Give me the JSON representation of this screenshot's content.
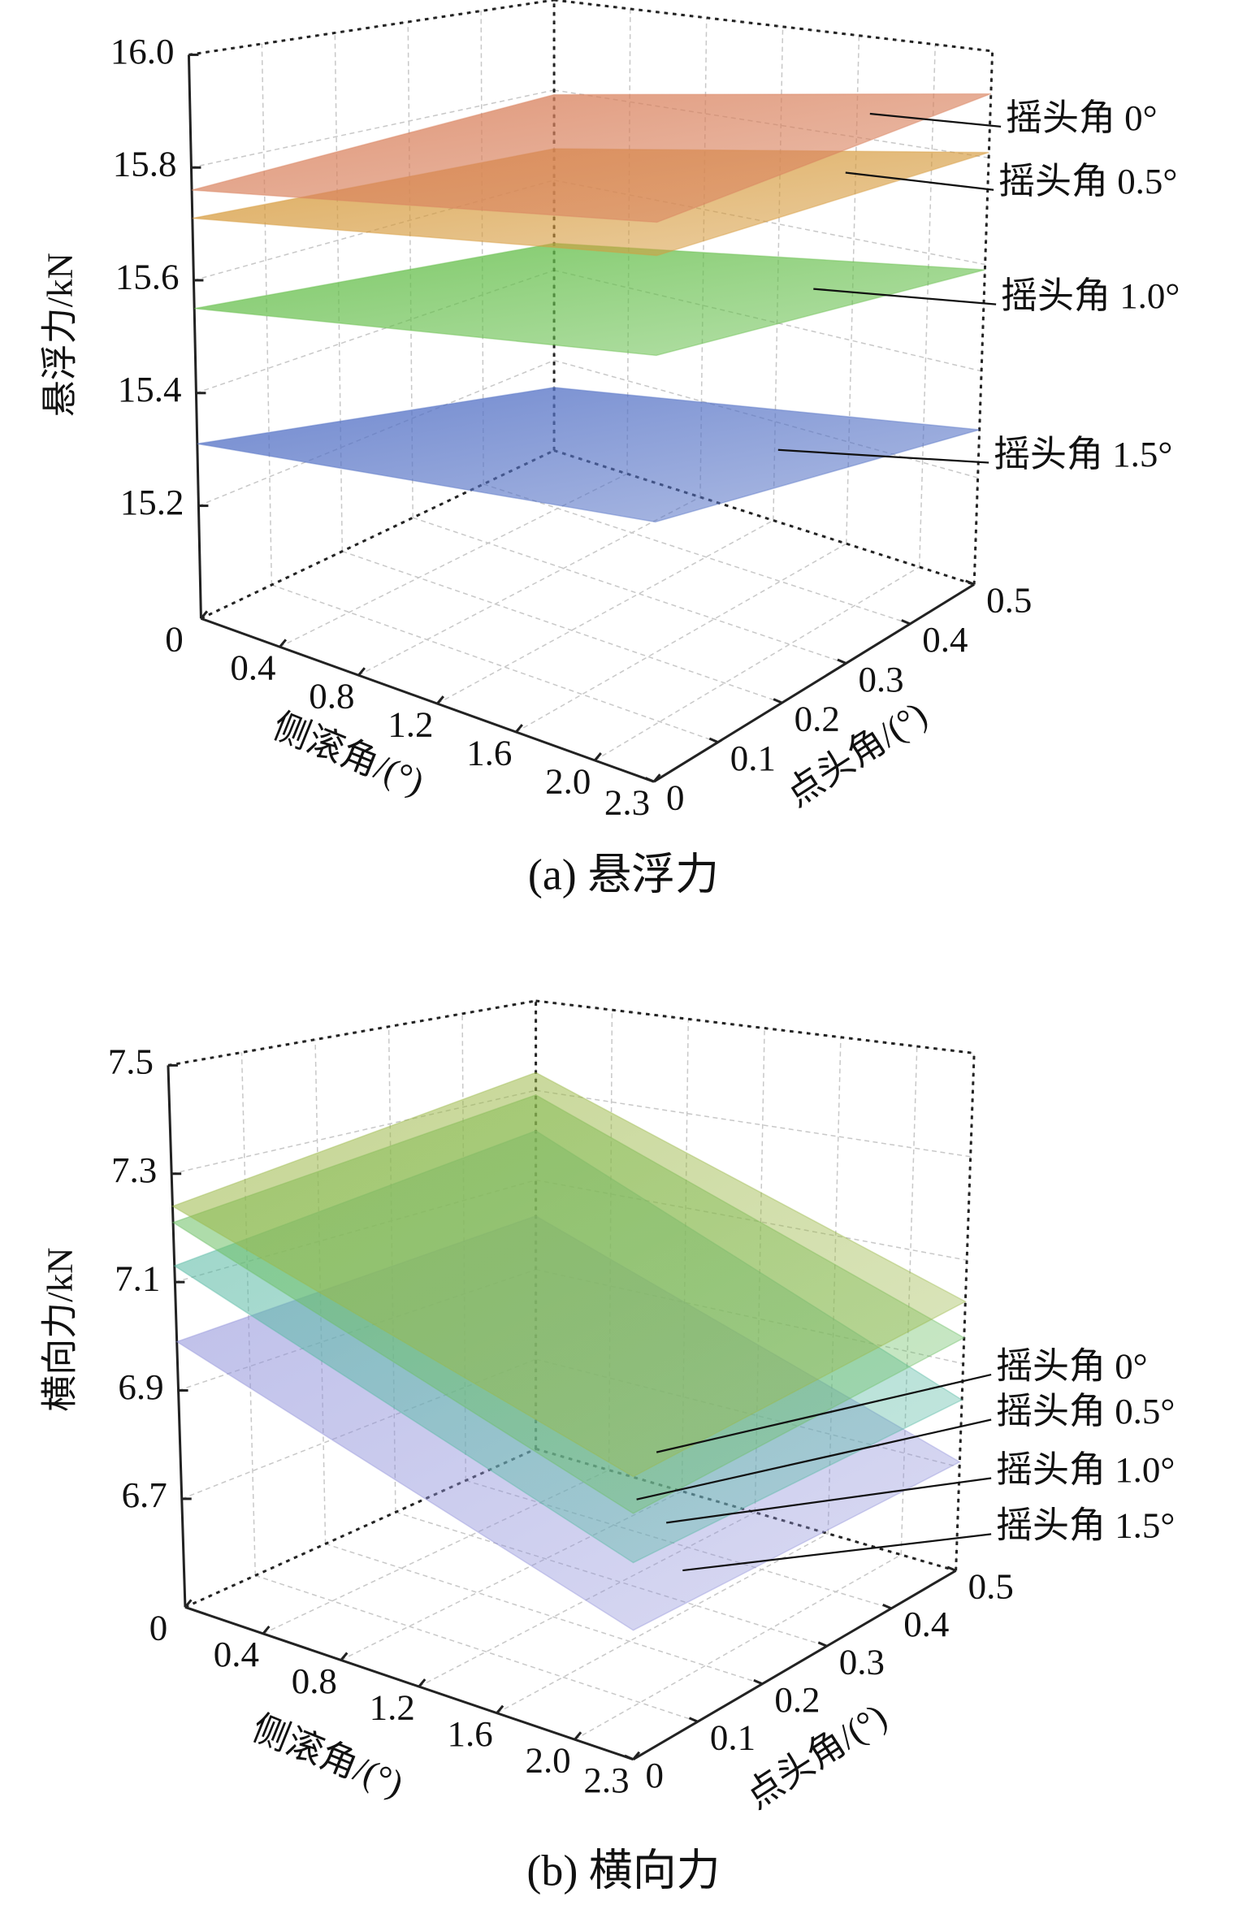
{
  "chart_data": [
    {
      "type": "surface3d",
      "caption": "(a) 悬浮力",
      "zlabel": "悬浮力/kN",
      "xlabel": "侧滚角/(°)",
      "ylabel": "点头角/(°)",
      "x": [
        0,
        2.3
      ],
      "y": [
        0,
        0.5
      ],
      "xlim": [
        0,
        2.3
      ],
      "ylim": [
        0,
        0.5
      ],
      "zlim": [
        15.0,
        16.0
      ],
      "xticks": [
        0,
        0.4,
        0.8,
        1.2,
        1.6,
        {
          "value": 2,
          "label": "2.0"
        },
        2.3
      ],
      "yticks": [
        0,
        0.1,
        0.2,
        0.3,
        0.4,
        0.5
      ],
      "zticks": [
        15.2,
        15.4,
        15.6,
        15.8,
        {
          "value": 16,
          "label": "16.0"
        }
      ],
      "grid": true,
      "opacity": 0.85,
      "series": [
        {
          "name": "摇头角 0°",
          "color": "#d9825e",
          "values": [
            [
              15.76,
              15.79
            ],
            [
              15.84,
              15.92
            ]
          ]
        },
        {
          "name": "摇头角 0.5°",
          "color": "#d69a3c",
          "values": [
            [
              15.71,
              15.67
            ],
            [
              15.79,
              15.81
            ]
          ]
        },
        {
          "name": "摇头角 1.0°",
          "color": "#66bf4c",
          "values": [
            [
              15.55,
              15.46
            ],
            [
              15.64,
              15.59
            ]
          ]
        },
        {
          "name": "摇头角 1.5°",
          "color": "#5673c6",
          "values": [
            [
              15.31,
              15.14
            ],
            [
              15.39,
              15.29
            ]
          ]
        }
      ]
    },
    {
      "type": "surface3d",
      "caption": "(b) 横向力",
      "zlabel": "横向力/kN",
      "xlabel": "侧滚角/(°)",
      "ylabel": "点头角/(°)",
      "x": [
        0,
        2.3
      ],
      "y": [
        0,
        0.5
      ],
      "xlim": [
        0,
        2.3
      ],
      "ylim": [
        0,
        0.5
      ],
      "zlim": [
        6.5,
        7.5
      ],
      "xticks": [
        0,
        0.4,
        0.8,
        1.2,
        1.6,
        {
          "value": 2,
          "label": "2.0"
        },
        2.3
      ],
      "yticks": [
        0,
        0.1,
        0.2,
        0.3,
        0.4,
        0.5
      ],
      "zticks": [
        6.7,
        6.9,
        7.1,
        7.3,
        7.5
      ],
      "grid": true,
      "opacity": 0.6,
      "series": [
        {
          "name": "摇头角 0°",
          "color": "#9cb848",
          "values": [
            [
              7.24,
              7.34
            ],
            [
              6.96,
              7.02
            ]
          ]
        },
        {
          "name": "摇头角 0.5°",
          "color": "#6cbf64",
          "values": [
            [
              7.21,
              7.29
            ],
            [
              6.9,
              6.95
            ]
          ]
        },
        {
          "name": "摇头角 1.0°",
          "color": "#56b8a2",
          "values": [
            [
              7.13,
              7.21
            ],
            [
              6.82,
              6.83
            ]
          ]
        },
        {
          "name": "摇头角 1.5°",
          "color": "#9092da",
          "values": [
            [
              6.99,
              7.02
            ],
            [
              6.71,
              6.71
            ]
          ]
        }
      ]
    }
  ]
}
